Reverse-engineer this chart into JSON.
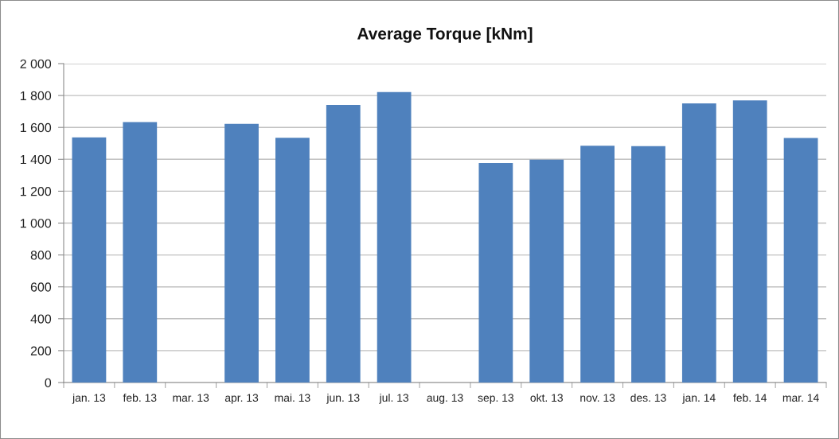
{
  "chart_data": {
    "type": "bar",
    "title": "Average Torque [kNm]",
    "categories": [
      "jan. 13",
      "feb. 13",
      "mar. 13",
      "apr. 13",
      "mai. 13",
      "jun. 13",
      "jul. 13",
      "aug. 13",
      "sep. 13",
      "okt. 13",
      "nov. 13",
      "des. 13",
      "jan. 14",
      "feb. 14",
      "mar. 14"
    ],
    "values": [
      1538,
      1634,
      null,
      1622,
      1535,
      1741,
      1822,
      null,
      1376,
      1398,
      1485,
      1482,
      1751,
      1769,
      1534
    ],
    "color": "#4f81bd",
    "ylim": [
      0,
      2000
    ],
    "yticks": [
      0,
      200,
      400,
      600,
      800,
      {
        "value": 1000,
        "label": "1 000"
      },
      {
        "value": 1200,
        "label": "1 200"
      },
      {
        "value": 1400,
        "label": "1 400"
      },
      {
        "value": 1600,
        "label": "1 600"
      },
      {
        "value": 1800,
        "label": "1 800"
      },
      {
        "value": 2000,
        "label": "2 000"
      }
    ],
    "grid": "y",
    "legend": false
  }
}
